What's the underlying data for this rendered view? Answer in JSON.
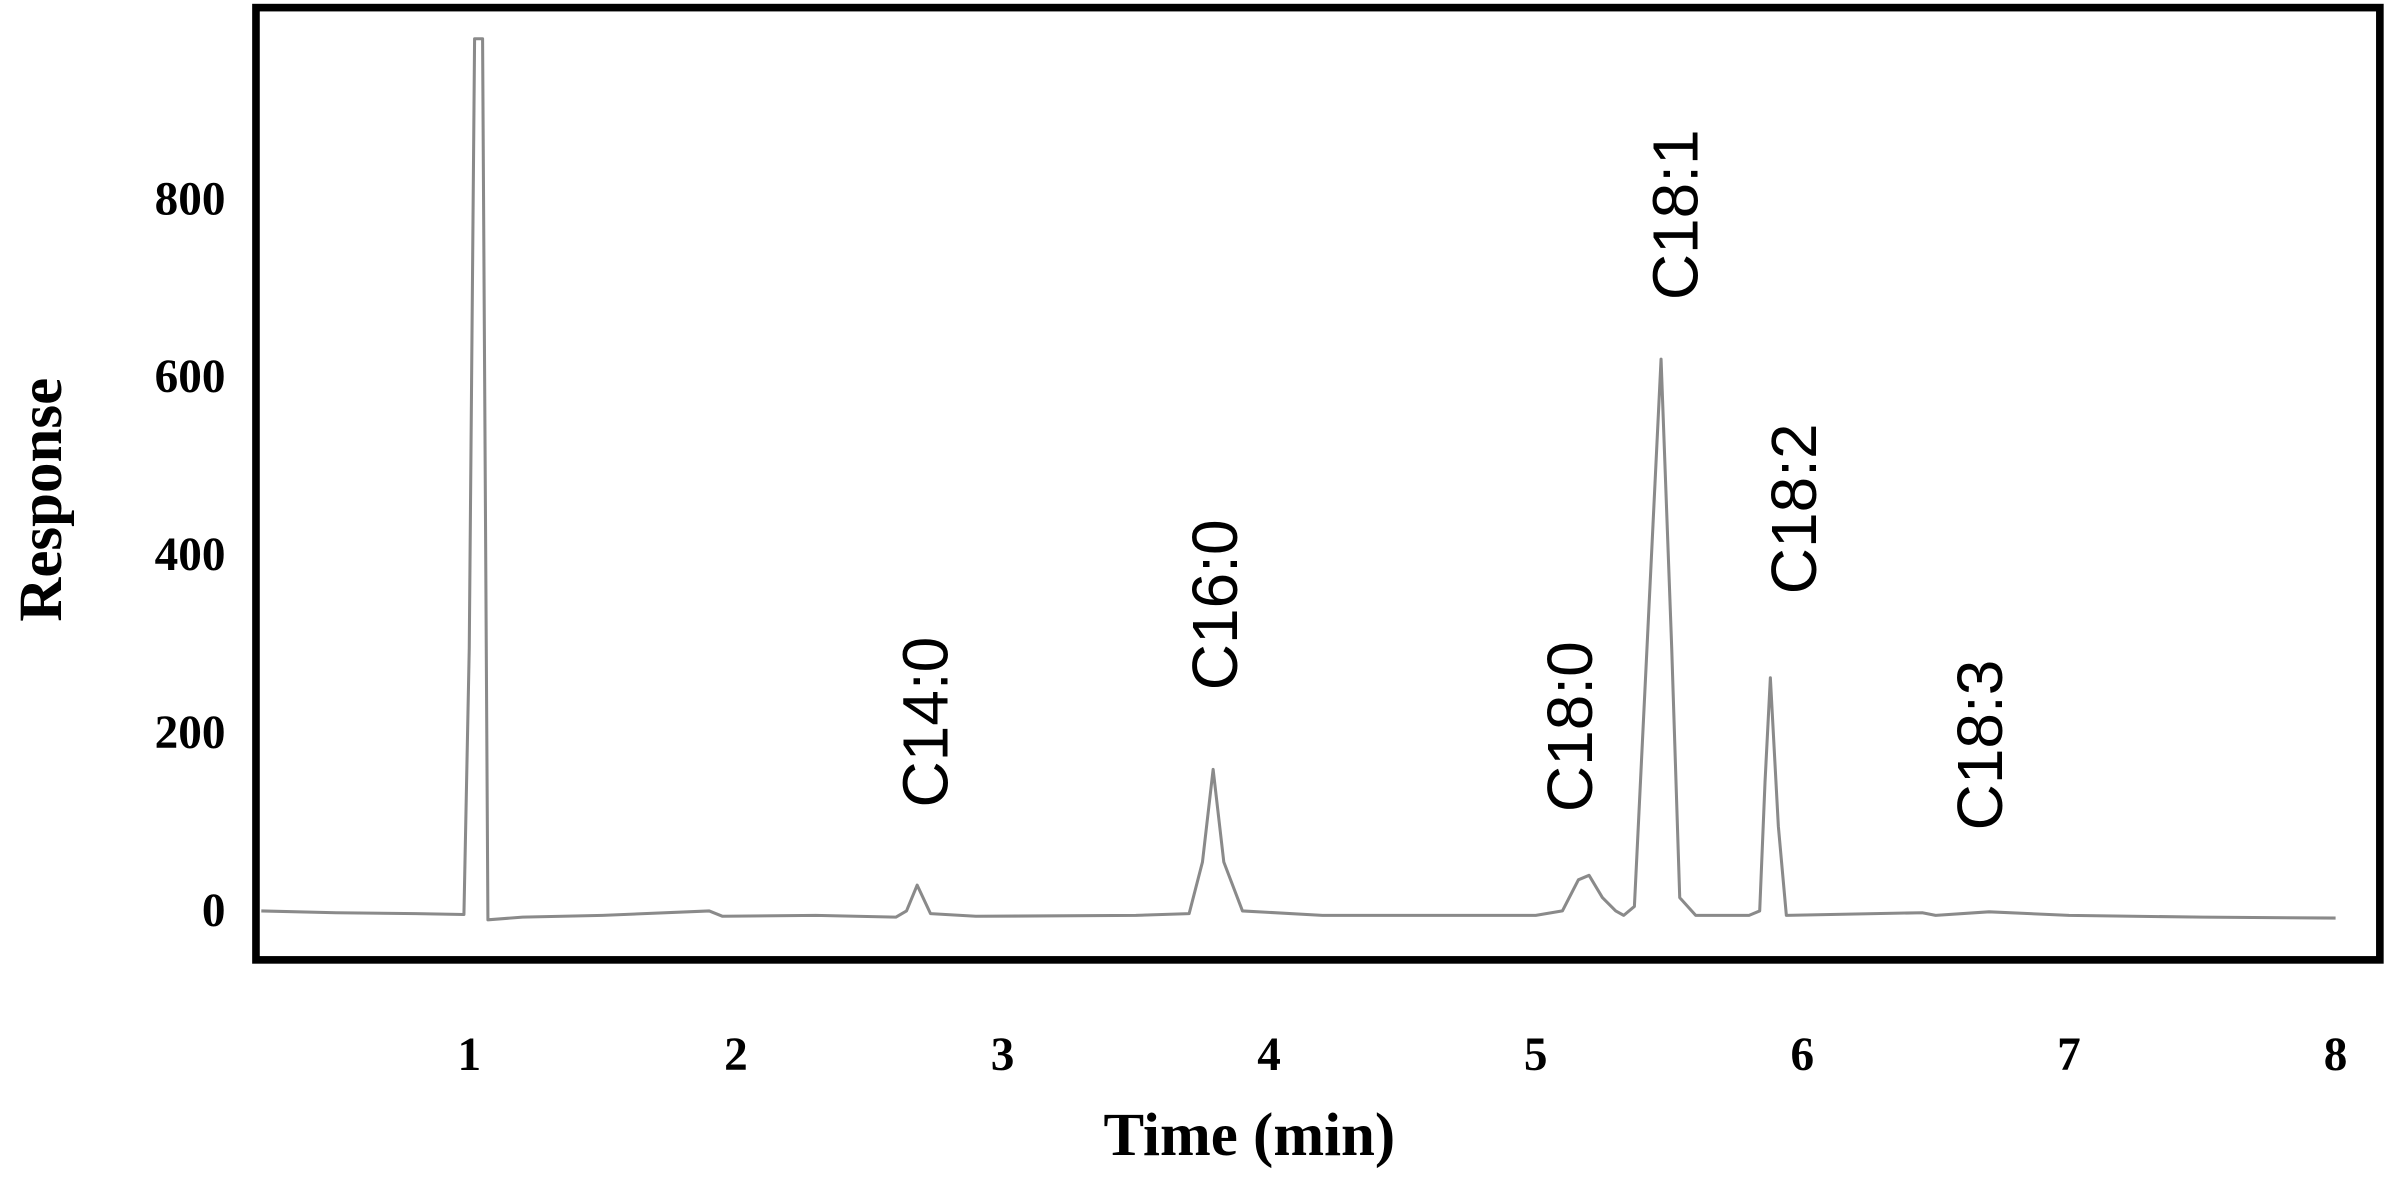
{
  "chart_data": {
    "type": "line",
    "x_label": "Time (min)",
    "y_label": "Response",
    "x": [
      0.22,
      0.5,
      0.8,
      0.98,
      1.0,
      1.02,
      1.05,
      1.07,
      1.2,
      1.5,
      1.9,
      1.95,
      2.3,
      2.6,
      2.64,
      2.68,
      2.73,
      2.9,
      3.5,
      3.7,
      3.75,
      3.79,
      3.83,
      3.9,
      4.2,
      4.6,
      5.0,
      5.1,
      5.16,
      5.2,
      5.25,
      5.3,
      5.33,
      5.37,
      5.47,
      5.51,
      5.54,
      5.6,
      5.8,
      5.84,
      5.86,
      5.88,
      5.91,
      5.94,
      6.45,
      6.5,
      6.7,
      7.0,
      7.5,
      8.0
    ],
    "values": [
      5,
      3,
      2,
      1,
      300,
      985,
      985,
      -5,
      -2,
      0,
      5,
      -1,
      0,
      -2,
      5,
      34,
      2,
      -1,
      0,
      2,
      60,
      164,
      60,
      5,
      0,
      0,
      0,
      5,
      40,
      45,
      20,
      5,
      0,
      10,
      625,
      300,
      20,
      0,
      0,
      5,
      150,
      267,
      100,
      0,
      3,
      0,
      4,
      0,
      -2,
      -3
    ],
    "color": "#8a8a8a",
    "xlim": [
      0.2,
      8.166
    ],
    "ylim": [
      -50,
      1020
    ],
    "xticks": [
      1,
      2,
      3,
      4,
      5,
      6,
      7,
      8
    ],
    "yticks": [
      0,
      200,
      400,
      600,
      800
    ],
    "annotations": [
      "C14:0",
      "C16:0",
      "C18:0",
      "C18:1",
      "C18:2",
      "C18:3"
    ]
  }
}
